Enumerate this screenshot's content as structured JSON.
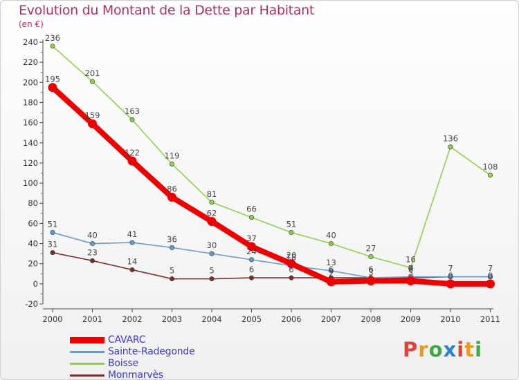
{
  "title": "Evolution du Montant de la Dette par Habitant",
  "subtitle": "(en €)",
  "logo": "Proxiti",
  "logo_colors": [
    "#e3403a",
    "#f29a18",
    "#3eaa44",
    "#2d83cf"
  ],
  "chart_data": {
    "type": "line",
    "title": "Evolution du Montant de la Dette par Habitant",
    "ylabel": "(en €)",
    "xlabel": "",
    "ylim": [
      -20,
      240
    ],
    "ytick_step": 20,
    "grid": false,
    "legend": "bottom-left",
    "categories": [
      "2000",
      "2001",
      "2002",
      "2003",
      "2004",
      "2005",
      "2006",
      "2007",
      "2008",
      "2009",
      "2010",
      "2011"
    ],
    "series": [
      {
        "name": "CAVARC",
        "color": "#ee0000",
        "values": [
          195,
          159,
          122,
          86,
          62,
          37,
          20,
          2,
          3,
          3,
          0,
          0
        ]
      },
      {
        "name": "Sainte-Radegonde",
        "color": "#6a9bc6",
        "values": [
          51,
          40,
          41,
          36,
          30,
          24,
          18,
          13,
          6,
          7,
          7,
          7
        ]
      },
      {
        "name": "Boisse",
        "color": "#90d050",
        "values": [
          236,
          201,
          163,
          119,
          81,
          66,
          51,
          40,
          27,
          16,
          136,
          108
        ]
      },
      {
        "name": "Monmarvès",
        "color": "#7a3030",
        "values": [
          31,
          23,
          14,
          5,
          5,
          6,
          6,
          6,
          6,
          6,
          7,
          7
        ]
      }
    ]
  }
}
